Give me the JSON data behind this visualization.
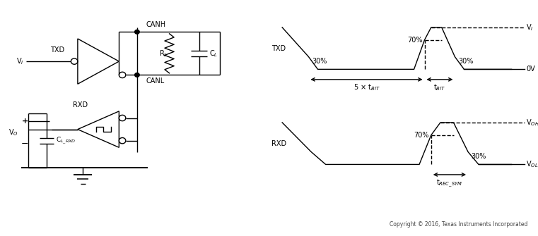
{
  "fig_width": 7.61,
  "fig_height": 3.35,
  "bg_color": "#ffffff",
  "line_color": "#000000",
  "circuit": {
    "txd_label": "TXD",
    "vi_label": "V$_I$",
    "vo_label": "V$_O$",
    "rxd_label": "RXD",
    "canh_label": "CANH",
    "canl_label": "CANL",
    "rl_label": "R$_L$",
    "cl_label": "C$_L$",
    "cl_rxd_label": "C$_{L\\_RXD}$"
  },
  "timing": {
    "txd_label": "TXD",
    "rxd_label": "RXD",
    "vi_label": "V$_I$",
    "oh_label": "V$_{OH}$",
    "ol_label": "V$_{OL}$",
    "ov_label": "0V",
    "p70_label": "70%",
    "p30_label": "30%",
    "tbit5_label": "5 × t$_{BIT}$",
    "tbit_label": "t$_{BIT}$",
    "trec_label": "t$_{REC\\_SYM}$",
    "copyright": "Copyright © 2016, Texas Instruments Incorporated"
  }
}
